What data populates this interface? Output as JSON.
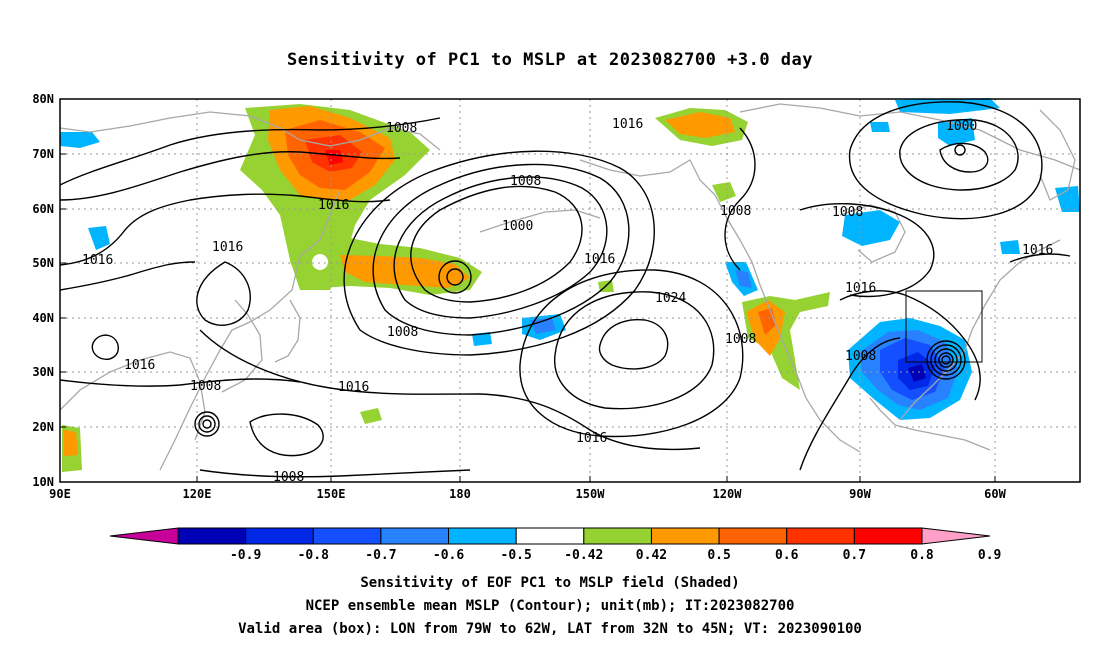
{
  "title": "Sensitivity of PC1 to MSLP at 2023082700 +3.0 day",
  "map": {
    "lon_labels": [
      "90E",
      "120E",
      "150E",
      "180",
      "150W",
      "120W",
      "90W",
      "60W"
    ],
    "lat_labels": [
      "80N",
      "70N",
      "60N",
      "50N",
      "40N",
      "30N",
      "20N",
      "10N"
    ],
    "contour_labels": [
      "1008",
      "1016",
      "1008",
      "1016",
      "1000",
      "1016",
      "1016",
      "1016",
      "1008",
      "1000",
      "1024",
      "1008",
      "1016",
      "1016",
      "1016",
      "1008",
      "1008",
      "1008",
      "1016",
      "1008",
      "1016",
      "1008"
    ],
    "valid_box": {
      "lon_w": "79W",
      "lon_e": "62W",
      "lat_s": "32N",
      "lat_n": "45N"
    },
    "colors": {
      "coast": "#a8a8a8",
      "grid": "#999999",
      "contour": "#000000"
    }
  },
  "colorbar": {
    "labels": [
      "-0.9",
      "-0.8",
      "-0.7",
      "-0.6",
      "-0.5",
      "-0.42",
      "0.42",
      "0.5",
      "0.6",
      "0.7",
      "0.8",
      "0.9"
    ],
    "colors": [
      "#c8009a",
      "#0000b4",
      "#0028e6",
      "#1450ff",
      "#2882ff",
      "#00b4ff",
      "#ffffff",
      "#96d232",
      "#ff9900",
      "#ff6400",
      "#ff3200",
      "#ff0000",
      "#ffa0c8"
    ]
  },
  "captions": {
    "line1": "Sensitivity of EOF PC1 to MSLP field (Shaded)",
    "line2": "NCEP ensemble mean MSLP (Contour); unit(mb); IT:2023082700",
    "line3": "Valid area (box): LON from 79W to 62W, LAT from 32N to 45N; VT: 2023090100"
  }
}
